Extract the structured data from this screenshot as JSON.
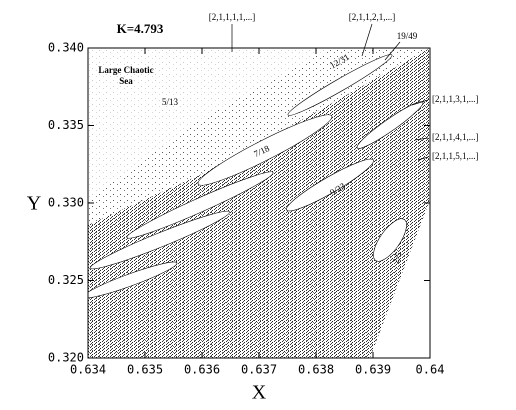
{
  "chart_data": {
    "type": "scatter",
    "title": "K=4.793",
    "xlabel": "X",
    "ylabel": "Y",
    "xlim": [
      0.634,
      0.64
    ],
    "ylim": [
      0.32,
      0.34
    ],
    "xticks": [
      0.634,
      0.635,
      0.636,
      0.637,
      0.638,
      0.639,
      0.64
    ],
    "yticks": [
      {
        "value": 0.32,
        "label": "0.320"
      },
      0.325,
      {
        "value": 0.33,
        "label": "0.330"
      },
      0.335,
      {
        "value": 0.34,
        "label": "0.340"
      }
    ],
    "region_label": [
      "Large Chaotic",
      "Sea"
    ],
    "annotations": [
      "[2,1,1,1,1,...]",
      "[2,1,1,2,1,...]",
      "19/49",
      "[2,1,1,3,1,...]",
      "[2,1,1,4,1,...]",
      "[2,1,1,5,1,...]"
    ],
    "island_labels": [
      "5/13",
      "7/18",
      "9/23",
      "12/31",
      "2/5"
    ]
  }
}
